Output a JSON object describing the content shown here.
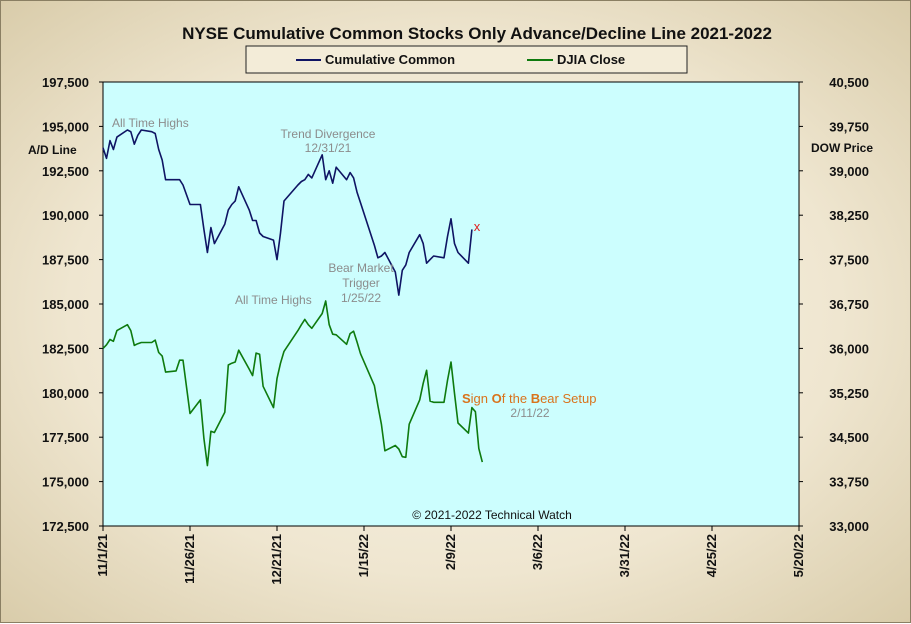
{
  "chart_data": {
    "type": "line",
    "title": "NYSE Cumulative  Common Stocks Only Advance/Decline  Line 2021-2022",
    "legend": [
      "Cumulative Common",
      "DJIA Close"
    ],
    "legend_placement": "top-center",
    "grid": false,
    "left_axis": {
      "label": "A/D Line",
      "ylim": [
        172500,
        197500
      ],
      "ticks": [
        "197,500",
        "195,000",
        "192,500",
        "190,000",
        "187,500",
        "185,000",
        "182,500",
        "180,000",
        "177,500",
        "175,000",
        "172,500"
      ]
    },
    "right_axis": {
      "label": "DOW Price",
      "ylim": [
        33000,
        40500
      ],
      "ticks": [
        "40,500",
        "39,750",
        "39,000",
        "38,250",
        "37,500",
        "36,750",
        "36,000",
        "35,250",
        "34,500",
        "33,750",
        "33,000"
      ]
    },
    "x_axis": {
      "start": "2021-11-01",
      "end": "2022-05-20",
      "ticks": [
        "11/1/21",
        "11/26/21",
        "12/21/21",
        "1/15/22",
        "2/9/22",
        "3/6/22",
        "3/31/22",
        "4/25/22",
        "5/20/22"
      ]
    },
    "series": [
      {
        "name": "Cumulative Common",
        "axis": "left",
        "color": "#0f1463",
        "points": [
          [
            "2021-11-01",
            193800
          ],
          [
            "2021-11-02",
            193200
          ],
          [
            "2021-11-03",
            194200
          ],
          [
            "2021-11-04",
            193700
          ],
          [
            "2021-11-05",
            194400
          ],
          [
            "2021-11-08",
            194800
          ],
          [
            "2021-11-09",
            194700
          ],
          [
            "2021-11-10",
            194000
          ],
          [
            "2021-11-11",
            194500
          ],
          [
            "2021-11-12",
            194800
          ],
          [
            "2021-11-15",
            194700
          ],
          [
            "2021-11-16",
            194600
          ],
          [
            "2021-11-17",
            193700
          ],
          [
            "2021-11-18",
            193100
          ],
          [
            "2021-11-19",
            192000
          ],
          [
            "2021-11-22",
            192000
          ],
          [
            "2021-11-23",
            192000
          ],
          [
            "2021-11-24",
            191700
          ],
          [
            "2021-11-26",
            190600
          ],
          [
            "2021-11-29",
            190600
          ],
          [
            "2021-11-30",
            189200
          ],
          [
            "2021-12-01",
            187900
          ],
          [
            "2021-12-02",
            189300
          ],
          [
            "2021-12-03",
            188400
          ],
          [
            "2021-12-06",
            189500
          ],
          [
            "2021-12-07",
            190300
          ],
          [
            "2021-12-08",
            190600
          ],
          [
            "2021-12-09",
            190800
          ],
          [
            "2021-12-10",
            191600
          ],
          [
            "2021-12-13",
            190300
          ],
          [
            "2021-12-14",
            189700
          ],
          [
            "2021-12-15",
            189700
          ],
          [
            "2021-12-16",
            189000
          ],
          [
            "2021-12-17",
            188800
          ],
          [
            "2021-12-20",
            188600
          ],
          [
            "2021-12-21",
            187500
          ],
          [
            "2021-12-22",
            189000
          ],
          [
            "2021-12-23",
            190800
          ],
          [
            "2021-12-27",
            191700
          ],
          [
            "2021-12-28",
            191900
          ],
          [
            "2021-12-29",
            192000
          ],
          [
            "2021-12-30",
            192300
          ],
          [
            "2021-12-31",
            192100
          ],
          [
            "2022-01-03",
            193400
          ],
          [
            "2022-01-04",
            192000
          ],
          [
            "2022-01-05",
            192500
          ],
          [
            "2022-01-06",
            191800
          ],
          [
            "2022-01-07",
            192700
          ],
          [
            "2022-01-10",
            192000
          ],
          [
            "2022-01-11",
            192400
          ],
          [
            "2022-01-12",
            192100
          ],
          [
            "2022-01-13",
            191300
          ],
          [
            "2022-01-14",
            190700
          ],
          [
            "2022-01-18",
            188300
          ],
          [
            "2022-01-19",
            187600
          ],
          [
            "2022-01-20",
            187700
          ],
          [
            "2022-01-21",
            187900
          ],
          [
            "2022-01-24",
            186800
          ],
          [
            "2022-01-25",
            185500
          ],
          [
            "2022-01-26",
            186900
          ],
          [
            "2022-01-27",
            187200
          ],
          [
            "2022-01-28",
            187900
          ],
          [
            "2022-01-31",
            188900
          ],
          [
            "2022-02-01",
            188400
          ],
          [
            "2022-02-02",
            187300
          ],
          [
            "2022-02-03",
            187500
          ],
          [
            "2022-02-04",
            187700
          ],
          [
            "2022-02-07",
            187600
          ],
          [
            "2022-02-08",
            188800
          ],
          [
            "2022-02-09",
            189800
          ],
          [
            "2022-02-10",
            188400
          ],
          [
            "2022-02-11",
            187900
          ],
          [
            "2022-02-14",
            187300
          ],
          [
            "2022-02-15",
            189200
          ]
        ]
      },
      {
        "name": "DJIA Close",
        "axis": "right",
        "color": "#0e7a0e",
        "points": [
          [
            "2021-11-01",
            36000
          ],
          [
            "2021-11-02",
            36060
          ],
          [
            "2021-11-03",
            36150
          ],
          [
            "2021-11-04",
            36120
          ],
          [
            "2021-11-05",
            36300
          ],
          [
            "2021-11-08",
            36400
          ],
          [
            "2021-11-09",
            36300
          ],
          [
            "2021-11-10",
            36050
          ],
          [
            "2021-11-11",
            36080
          ],
          [
            "2021-11-12",
            36100
          ],
          [
            "2021-11-15",
            36100
          ],
          [
            "2021-11-16",
            36140
          ],
          [
            "2021-11-17",
            35930
          ],
          [
            "2021-11-18",
            35870
          ],
          [
            "2021-11-19",
            35600
          ],
          [
            "2021-11-22",
            35620
          ],
          [
            "2021-11-23",
            35800
          ],
          [
            "2021-11-24",
            35800
          ],
          [
            "2021-11-26",
            34900
          ],
          [
            "2021-11-29",
            35130
          ],
          [
            "2021-11-30",
            34480
          ],
          [
            "2021-12-01",
            34020
          ],
          [
            "2021-12-02",
            34600
          ],
          [
            "2021-12-03",
            34580
          ],
          [
            "2021-12-06",
            34920
          ],
          [
            "2021-12-07",
            35720
          ],
          [
            "2021-12-08",
            35750
          ],
          [
            "2021-12-09",
            35770
          ],
          [
            "2021-12-10",
            35970
          ],
          [
            "2021-12-13",
            35650
          ],
          [
            "2021-12-14",
            35540
          ],
          [
            "2021-12-15",
            35920
          ],
          [
            "2021-12-16",
            35900
          ],
          [
            "2021-12-17",
            35360
          ],
          [
            "2021-12-20",
            35000
          ],
          [
            "2021-12-21",
            35490
          ],
          [
            "2021-12-22",
            35750
          ],
          [
            "2021-12-23",
            35950
          ],
          [
            "2021-12-27",
            36300
          ],
          [
            "2021-12-28",
            36400
          ],
          [
            "2021-12-29",
            36490
          ],
          [
            "2021-12-30",
            36400
          ],
          [
            "2021-12-31",
            36340
          ],
          [
            "2022-01-03",
            36590
          ],
          [
            "2022-01-04",
            36800
          ],
          [
            "2022-01-05",
            36400
          ],
          [
            "2022-01-06",
            36240
          ],
          [
            "2022-01-07",
            36230
          ],
          [
            "2022-01-10",
            36070
          ],
          [
            "2022-01-11",
            36250
          ],
          [
            "2022-01-12",
            36290
          ],
          [
            "2022-01-13",
            36110
          ],
          [
            "2022-01-14",
            35910
          ],
          [
            "2022-01-18",
            35370
          ],
          [
            "2022-01-19",
            35030
          ],
          [
            "2022-01-20",
            34720
          ],
          [
            "2022-01-21",
            34270
          ],
          [
            "2022-01-24",
            34360
          ],
          [
            "2022-01-25",
            34300
          ],
          [
            "2022-01-26",
            34170
          ],
          [
            "2022-01-27",
            34160
          ],
          [
            "2022-01-28",
            34720
          ],
          [
            "2022-01-31",
            35130
          ],
          [
            "2022-02-01",
            35410
          ],
          [
            "2022-02-02",
            35630
          ],
          [
            "2022-02-03",
            35110
          ],
          [
            "2022-02-04",
            35090
          ],
          [
            "2022-02-07",
            35090
          ],
          [
            "2022-02-08",
            35460
          ],
          [
            "2022-02-09",
            35770
          ],
          [
            "2022-02-10",
            35240
          ],
          [
            "2022-02-11",
            34740
          ],
          [
            "2022-02-14",
            34570
          ],
          [
            "2022-02-15",
            35000
          ],
          [
            "2022-02-16",
            34930
          ],
          [
            "2022-02-17",
            34310
          ],
          [
            "2022-02-18",
            34080
          ]
        ]
      }
    ],
    "annotations": {
      "ath_ad": "All Time Highs",
      "divergence_title": "Trend  Divergence",
      "divergence_date": "12/31/21",
      "bear_line1": "Bear Market",
      "bear_line2": "Trigger",
      "bear_date": "1/25/22",
      "ath_dow": "All Time Highs",
      "sobs_S": "S",
      "sobs_1": "ign ",
      "sobs_O": "O",
      "sobs_2": "f the ",
      "sobs_B": "B",
      "sobs_3": "ear Setup",
      "sobs_date": "2/11/22",
      "marker_glyph": "x",
      "copyright": "© 2021-2022  Technical Watch"
    }
  }
}
